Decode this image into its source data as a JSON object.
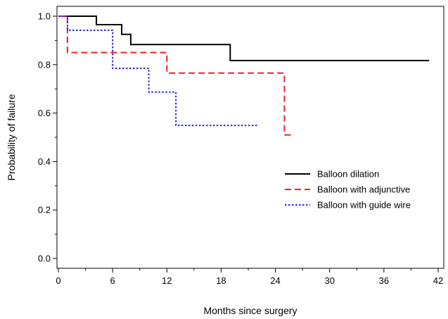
{
  "chart_data": {
    "type": "line",
    "step": true,
    "xlabel": "Months since surgery",
    "ylabel": "Probability of failure",
    "xlim": [
      0,
      42
    ],
    "ylim": [
      0,
      1.0
    ],
    "xticks": [
      0,
      6,
      12,
      18,
      24,
      30,
      36,
      42
    ],
    "yticks": [
      0.0,
      0.2,
      0.4,
      0.6,
      0.8,
      1.0
    ],
    "xtick_labels": [
      "0",
      "6",
      "12",
      "18",
      "24",
      "30",
      "36",
      "42"
    ],
    "ytick_labels": [
      "0.0",
      "0.2",
      "0.4",
      "0.6",
      "0.8",
      "1.0"
    ],
    "grid": false,
    "legend_position": "center-right",
    "series": [
      {
        "name": "Balloon dilation",
        "color": "#000000",
        "dash": "solid",
        "points": [
          [
            0,
            1.0
          ],
          [
            4.2,
            1.0
          ],
          [
            4.2,
            0.965
          ],
          [
            7,
            0.965
          ],
          [
            7,
            0.925
          ],
          [
            8,
            0.925
          ],
          [
            8,
            0.883
          ],
          [
            19,
            0.883
          ],
          [
            19,
            0.817
          ],
          [
            41,
            0.817
          ]
        ]
      },
      {
        "name": "Balloon with adjunctive",
        "color": "#ee2222",
        "dash": "dashed",
        "points": [
          [
            0,
            1.0
          ],
          [
            1,
            1.0
          ],
          [
            1,
            0.85
          ],
          [
            12,
            0.85
          ],
          [
            12,
            0.765
          ],
          [
            25,
            0.765
          ],
          [
            25,
            0.51
          ],
          [
            26,
            0.51
          ]
        ]
      },
      {
        "name": "Balloon with guide wire",
        "color": "#2222ee",
        "dash": "dotted",
        "points": [
          [
            0,
            1.0
          ],
          [
            1,
            1.0
          ],
          [
            1,
            0.942
          ],
          [
            6,
            0.942
          ],
          [
            6,
            0.785
          ],
          [
            10,
            0.785
          ],
          [
            10,
            0.687
          ],
          [
            13,
            0.687
          ],
          [
            13,
            0.549
          ],
          [
            22,
            0.549
          ]
        ]
      }
    ]
  }
}
